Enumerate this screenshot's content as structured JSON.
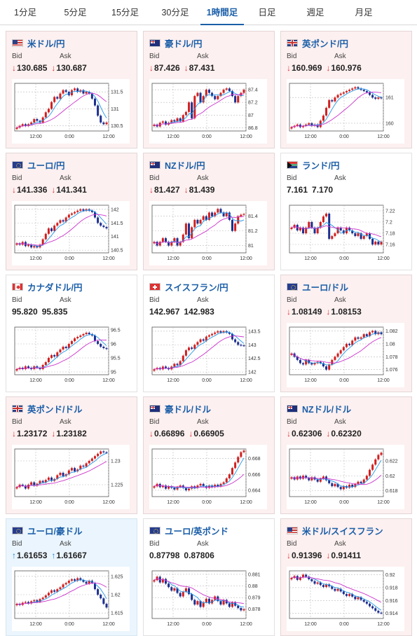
{
  "tabs": [
    {
      "label": "1分足",
      "active": false
    },
    {
      "label": "5分足",
      "active": false
    },
    {
      "label": "15分足",
      "active": false
    },
    {
      "label": "30分足",
      "active": false
    },
    {
      "label": "1時間足",
      "active": true
    },
    {
      "label": "日足",
      "active": false
    },
    {
      "label": "週足",
      "active": false
    },
    {
      "label": "月足",
      "active": false
    }
  ],
  "labels": {
    "bid": "Bid",
    "ask": "Ask"
  },
  "colors": {
    "down": "#d33333",
    "up": "#1a7fd4",
    "candle_up": "#d11f1f",
    "candle_down": "#1c2f8f",
    "ma_short": "#2196e8",
    "ma_long": "#cc33cc"
  },
  "cards": [
    {
      "pair": "米ドル/円",
      "flag": "us",
      "bid": "130.685",
      "ask": "130.687",
      "dir": "down",
      "bg": "down",
      "chart": {
        "x_ticks": [
          "12:00",
          "0:00",
          "12:00"
        ],
        "y_ticks": [
          "131.5",
          "131",
          "130.5"
        ],
        "y_range": [
          130.35,
          131.75
        ],
        "candles": "130.45,130.5,130.55,130.5,130.55,130.6,130.7,130.65,130.6,130.75,130.9,131.0,131.2,131.35,131.3,131.45,131.55,131.5,131.4,131.55,131.6,131.5,131.55,131.45,131.5,131.45,131.3,131.1,130.8,130.6,130.55,130.6"
      }
    },
    {
      "pair": "豪ドル/円",
      "flag": "au",
      "bid": "87.426",
      "ask": "87.431",
      "dir": "down",
      "bg": "down",
      "chart": {
        "x_ticks": [
          "12:00",
          "0:00",
          "12:00"
        ],
        "y_ticks": [
          "87.4",
          "87.2",
          "87",
          "86.8"
        ],
        "y_range": [
          86.75,
          87.5
        ],
        "candles": "86.85,86.82,86.88,86.9,86.85,86.88,86.92,86.9,86.95,86.9,87.0,87.05,87.2,86.95,87.3,87.35,87.2,87.3,87.4,87.35,87.3,87.25,87.3,87.35,87.4,87.42,87.38,87.3,87.2,87.3,87.35,87.4"
      }
    },
    {
      "pair": "英ポンド/円",
      "flag": "gb",
      "bid": "160.969",
      "ask": "160.976",
      "dir": "down",
      "bg": "down",
      "chart": {
        "x_ticks": [
          "12:00",
          "0:00",
          "12:00"
        ],
        "y_ticks": [
          "161",
          "160"
        ],
        "y_range": [
          159.7,
          161.55
        ],
        "candles": "159.85,159.9,159.95,159.85,159.9,159.95,160.0,159.9,159.95,159.85,160.1,160.3,160.6,160.9,160.85,161.0,161.1,161.15,161.2,161.25,161.3,161.35,161.4,161.35,161.3,161.25,161.2,161.1,161.0,160.95,161.0,160.97"
      }
    },
    {
      "pair": "ユーロ/円",
      "flag": "eu",
      "bid": "141.336",
      "ask": "141.341",
      "dir": "down",
      "bg": "down",
      "chart": {
        "x_ticks": [
          "12:00",
          "0:00",
          "12:00"
        ],
        "y_ticks": [
          "142",
          "141.5",
          "141",
          "140.5"
        ],
        "y_range": [
          140.4,
          142.15
        ],
        "candles": "140.75,140.7,140.8,140.65,140.7,140.6,140.65,140.6,140.7,140.9,141.1,141.3,141.2,141.4,141.5,141.6,141.55,141.7,141.8,141.85,141.9,141.95,142.0,141.95,142.0,141.95,141.9,141.7,141.5,141.4,141.35,141.3"
      }
    },
    {
      "pair": "NZドル/円",
      "flag": "nz",
      "bid": "81.427",
      "ask": "81.439",
      "dir": "down",
      "bg": "down",
      "chart": {
        "x_ticks": [
          "12:00",
          "0:00",
          "12:00"
        ],
        "y_ticks": [
          "81.4",
          "81.2",
          "81"
        ],
        "y_range": [
          80.9,
          81.55
        ],
        "candles": "81.05,81.0,81.05,81.1,81.05,81.0,81.05,81.1,81.0,81.05,81.15,81.3,81.1,81.25,81.35,81.3,81.35,81.4,81.35,81.45,81.4,81.45,81.5,81.45,81.4,81.45,81.35,81.2,81.3,81.4,81.42,81.43"
      }
    },
    {
      "pair": "ランド/円",
      "flag": "za",
      "bid": "7.161",
      "ask": "7.170",
      "dir": "none",
      "bg": "neutral",
      "chart": {
        "x_ticks": [
          "12:00",
          "0:00",
          "12:00"
        ],
        "y_ticks": [
          "7.22",
          "7.2",
          "7.18",
          "7.16"
        ],
        "y_range": [
          7.145,
          7.23
        ],
        "candles": "7.19,7.195,7.185,7.19,7.18,7.19,7.2,7.19,7.18,7.19,7.2,7.21,7.215,7.17,7.175,7.18,7.19,7.185,7.18,7.19,7.185,7.18,7.175,7.18,7.17,7.175,7.18,7.17,7.16,7.165,7.16,7.165"
      }
    },
    {
      "pair": "カナダドル/円",
      "flag": "ca",
      "bid": "95.820",
      "ask": "95.835",
      "dir": "none",
      "bg": "neutral",
      "chart": {
        "x_ticks": [
          "12:00",
          "0:00",
          "12:00"
        ],
        "y_ticks": [
          "96.5",
          "96",
          "95.5",
          "95"
        ],
        "y_range": [
          94.9,
          96.6
        ],
        "candles": "95.1,95.15,95.1,95.2,95.15,95.1,95.2,95.15,95.1,95.25,95.35,95.5,95.6,95.55,95.7,95.8,95.9,95.85,96.0,96.1,96.2,96.25,96.3,96.35,96.4,96.35,96.3,96.1,96.0,95.9,95.85,95.82"
      }
    },
    {
      "pair": "スイスフラン/円",
      "flag": "ch",
      "bid": "142.967",
      "ask": "142.983",
      "dir": "none",
      "bg": "neutral",
      "chart": {
        "x_ticks": [
          "12:00",
          "0:00",
          "12:00"
        ],
        "y_ticks": [
          "143.5",
          "143",
          "142.5",
          "142"
        ],
        "y_range": [
          141.9,
          143.65
        ],
        "candles": "142.1,142.15,142.1,142.2,142.15,142.1,142.2,142.3,142.25,142.4,142.6,142.8,142.9,142.85,143.0,143.1,143.2,143.15,143.3,143.35,143.4,143.45,143.5,143.45,143.5,143.45,143.4,143.2,143.1,143.0,142.98,142.97"
      }
    },
    {
      "pair": "ユーロ/ドル",
      "flag": "eu",
      "bid": "1.08149",
      "ask": "1.08153",
      "dir": "down",
      "bg": "down",
      "chart": {
        "x_ticks": [
          "12:00",
          "0:00",
          "12:00"
        ],
        "y_ticks": [
          "1.082",
          "1.08",
          "1.078",
          "1.076"
        ],
        "y_range": [
          1.0752,
          1.0826
        ],
        "candles": "1.0785,1.078,1.0775,1.077,1.0768,1.0775,1.077,1.0768,1.077,1.0772,1.077,1.0765,1.076,1.0768,1.0775,1.078,1.0785,1.079,1.0795,1.08,1.0798,1.0805,1.081,1.0808,1.081,1.0815,1.0812,1.0818,1.082,1.0815,1.0818,1.0815"
      }
    },
    {
      "pair": "英ポンド/ドル",
      "flag": "gb",
      "bid": "1.23172",
      "ask": "1.23182",
      "dir": "down",
      "bg": "down",
      "chart": {
        "x_ticks": [
          "12:00",
          "0:00",
          "12:00"
        ],
        "y_ticks": [
          "1.23",
          "1.225"
        ],
        "y_range": [
          1.2225,
          1.2325
        ],
        "candles": "1.2245,1.225,1.2248,1.2242,1.225,1.2255,1.2248,1.2252,1.2258,1.2255,1.226,1.2265,1.2258,1.2262,1.227,1.2275,1.2268,1.2272,1.228,1.2285,1.2278,1.2282,1.229,1.2288,1.2295,1.23,1.2305,1.231,1.2315,1.232,1.2318,1.2317"
      }
    },
    {
      "pair": "豪ドル/ドル",
      "flag": "au",
      "bid": "0.66896",
      "ask": "0.66905",
      "dir": "down",
      "bg": "down",
      "chart": {
        "x_ticks": [
          "12:00",
          "0:00",
          "12:00"
        ],
        "y_ticks": [
          "0.668",
          "0.666",
          "0.664"
        ],
        "y_range": [
          0.6632,
          0.6692
        ],
        "candles": "0.6645,0.6648,0.6644,0.6646,0.6642,0.6645,0.6643,0.6641,0.6644,0.6646,0.6643,0.664,0.6642,0.6645,0.6643,0.6646,0.6648,0.6645,0.6643,0.6646,0.6644,0.6647,0.6645,0.6648,0.665,0.6655,0.666,0.6668,0.6675,0.6682,0.6688,0.669"
      }
    },
    {
      "pair": "NZドル/ドル",
      "flag": "nz",
      "bid": "0.62306",
      "ask": "0.62320",
      "dir": "down",
      "bg": "down",
      "chart": {
        "x_ticks": [
          "12:00",
          "0:00",
          "12:00"
        ],
        "y_ticks": [
          "0.622",
          "0.62",
          "0.618"
        ],
        "y_range": [
          0.6172,
          0.6236
        ],
        "candles": "0.6198,0.6195,0.6199,0.6196,0.62,0.6197,0.6194,0.6198,0.6195,0.6192,0.6196,0.6199,0.6194,0.619,0.6186,0.6189,0.6185,0.6182,0.6186,0.6184,0.6188,0.6185,0.6189,0.6192,0.619,0.6195,0.62,0.6208,0.6215,0.6222,0.6228,0.6231"
      }
    },
    {
      "pair": "ユーロ/豪ドル",
      "flag": "eu",
      "bid": "1.61653",
      "ask": "1.61667",
      "dir": "up",
      "bg": "up",
      "chart": {
        "x_ticks": [
          "12:00",
          "0:00",
          "12:00"
        ],
        "y_ticks": [
          "1.625",
          "1.62",
          "1.615"
        ],
        "y_range": [
          1.6135,
          1.6265
        ],
        "candles": "1.6175,1.6172,1.6178,1.618,1.6176,1.6182,1.6185,1.618,1.6188,1.6192,1.6198,1.6205,1.6212,1.6208,1.6215,1.622,1.6228,1.6232,1.6238,1.6242,1.6238,1.6245,1.624,1.6235,1.623,1.6238,1.6232,1.6215,1.62,1.619,1.6175,1.6165"
      }
    },
    {
      "pair": "ユーロ/英ポンド",
      "flag": "eu",
      "bid": "0.87798",
      "ask": "0.87806",
      "dir": "none",
      "bg": "neutral",
      "chart": {
        "x_ticks": [
          "12:00",
          "0:00",
          "12:00"
        ],
        "y_ticks": [
          "0.881",
          "0.88",
          "0.879",
          "0.878"
        ],
        "y_range": [
          0.8772,
          0.8813
        ],
        "candles": "0.8805,0.8808,0.8803,0.8806,0.8802,0.8799,0.8796,0.8798,0.8794,0.8791,0.8795,0.8798,0.8793,0.8788,0.8784,0.8787,0.8782,0.8786,0.8789,0.8785,0.8788,0.8791,0.8787,0.8784,0.8788,0.8785,0.8782,0.8786,0.8783,0.8781,0.8779,0.878"
      }
    },
    {
      "pair": "米ドル/スイスフラン",
      "flag": "us",
      "bid": "0.91396",
      "ask": "0.91411",
      "dir": "down",
      "bg": "down",
      "chart": {
        "x_ticks": [
          "12:00",
          "0:00",
          "12:00"
        ],
        "y_ticks": [
          "0.92",
          "0.918",
          "0.916",
          "0.914"
        ],
        "y_range": [
          0.9132,
          0.9206
        ],
        "candles": "0.9195,0.9198,0.9192,0.9196,0.92,0.9197,0.9193,0.919,0.9186,0.9188,0.9184,0.9181,0.9185,0.9182,0.9178,0.9175,0.9178,0.9174,0.917,0.9167,0.917,0.9166,0.9162,0.9165,0.9161,0.9158,0.9155,0.9151,0.9148,0.9144,0.9141,0.914"
      }
    }
  ]
}
